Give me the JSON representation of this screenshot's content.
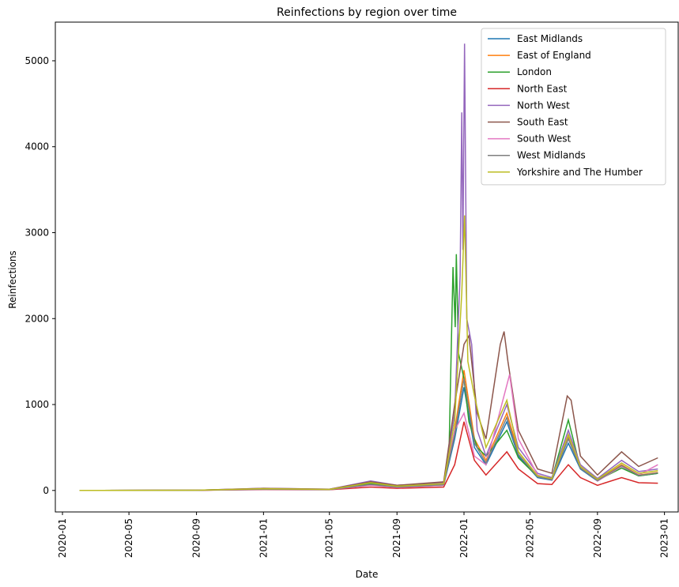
{
  "chart_data": {
    "type": "line",
    "title": "Reinfections by region over time",
    "xlabel": "Date",
    "ylabel": "Reinfections",
    "xlim": [
      "2019-12-19",
      "2023-01-26"
    ],
    "ylim": [
      -250,
      5450
    ],
    "x_ticks": [
      "2020-01",
      "2020-05",
      "2020-09",
      "2021-01",
      "2021-05",
      "2021-09",
      "2022-01",
      "2022-05",
      "2022-09",
      "2023-01"
    ],
    "y_ticks": [
      0,
      1000,
      2000,
      3000,
      4000,
      5000
    ],
    "grid": false,
    "legend_position": "top-right",
    "series": [
      {
        "name": "East Midlands",
        "color": "#1f77b4",
        "points": [
          [
            "2020-02-01",
            0
          ],
          [
            "2020-09-01",
            2
          ],
          [
            "2021-01-01",
            15
          ],
          [
            "2021-05-01",
            10
          ],
          [
            "2021-07-15",
            70
          ],
          [
            "2021-09-01",
            40
          ],
          [
            "2021-11-25",
            60
          ],
          [
            "2021-12-15",
            600
          ],
          [
            "2022-01-01",
            1200
          ],
          [
            "2022-01-20",
            500
          ],
          [
            "2022-02-10",
            300
          ],
          [
            "2022-03-20",
            800
          ],
          [
            "2022-04-10",
            400
          ],
          [
            "2022-05-15",
            150
          ],
          [
            "2022-06-10",
            120
          ],
          [
            "2022-07-10",
            550
          ],
          [
            "2022-08-01",
            250
          ],
          [
            "2022-09-01",
            110
          ],
          [
            "2022-10-15",
            280
          ],
          [
            "2022-11-15",
            170
          ],
          [
            "2022-12-20",
            200
          ]
        ]
      },
      {
        "name": "East of England",
        "color": "#ff7f0e",
        "points": [
          [
            "2020-02-01",
            0
          ],
          [
            "2020-09-01",
            2
          ],
          [
            "2021-01-01",
            15
          ],
          [
            "2021-05-01",
            10
          ],
          [
            "2021-07-15",
            75
          ],
          [
            "2021-09-01",
            45
          ],
          [
            "2021-11-25",
            65
          ],
          [
            "2021-12-15",
            700
          ],
          [
            "2022-01-01",
            1400
          ],
          [
            "2022-01-20",
            600
          ],
          [
            "2022-02-10",
            350
          ],
          [
            "2022-03-20",
            900
          ],
          [
            "2022-04-10",
            450
          ],
          [
            "2022-05-15",
            170
          ],
          [
            "2022-06-10",
            130
          ],
          [
            "2022-07-10",
            620
          ],
          [
            "2022-08-01",
            280
          ],
          [
            "2022-09-01",
            120
          ],
          [
            "2022-10-15",
            300
          ],
          [
            "2022-11-15",
            180
          ],
          [
            "2022-12-20",
            210
          ]
        ]
      },
      {
        "name": "London",
        "color": "#2ca02c",
        "points": [
          [
            "2020-02-01",
            0
          ],
          [
            "2020-09-01",
            3
          ],
          [
            "2021-01-01",
            20
          ],
          [
            "2021-05-01",
            12
          ],
          [
            "2021-07-15",
            80
          ],
          [
            "2021-09-01",
            50
          ],
          [
            "2021-11-25",
            80
          ],
          [
            "2021-12-05",
            500
          ],
          [
            "2021-12-12",
            2600
          ],
          [
            "2021-12-16",
            1900
          ],
          [
            "2021-12-18",
            2750
          ],
          [
            "2021-12-22",
            1600
          ],
          [
            "2022-01-01",
            1300
          ],
          [
            "2022-01-10",
            800
          ],
          [
            "2022-01-25",
            500
          ],
          [
            "2022-02-10",
            400
          ],
          [
            "2022-03-20",
            700
          ],
          [
            "2022-04-10",
            380
          ],
          [
            "2022-05-15",
            160
          ],
          [
            "2022-06-10",
            140
          ],
          [
            "2022-07-10",
            820
          ],
          [
            "2022-08-01",
            260
          ],
          [
            "2022-09-01",
            120
          ],
          [
            "2022-10-15",
            260
          ],
          [
            "2022-11-15",
            170
          ],
          [
            "2022-12-20",
            200
          ]
        ]
      },
      {
        "name": "North East",
        "color": "#d62728",
        "points": [
          [
            "2020-02-01",
            0
          ],
          [
            "2020-09-01",
            2
          ],
          [
            "2021-01-01",
            10
          ],
          [
            "2021-05-01",
            8
          ],
          [
            "2021-07-15",
            40
          ],
          [
            "2021-09-01",
            25
          ],
          [
            "2021-11-25",
            40
          ],
          [
            "2021-12-15",
            300
          ],
          [
            "2022-01-01",
            800
          ],
          [
            "2022-01-20",
            350
          ],
          [
            "2022-02-10",
            180
          ],
          [
            "2022-03-20",
            450
          ],
          [
            "2022-04-10",
            250
          ],
          [
            "2022-05-15",
            80
          ],
          [
            "2022-06-10",
            70
          ],
          [
            "2022-07-10",
            300
          ],
          [
            "2022-08-01",
            150
          ],
          [
            "2022-09-01",
            60
          ],
          [
            "2022-10-15",
            150
          ],
          [
            "2022-11-15",
            90
          ],
          [
            "2022-12-20",
            85
          ]
        ]
      },
      {
        "name": "North West",
        "color": "#9467bd",
        "points": [
          [
            "2020-02-01",
            0
          ],
          [
            "2020-09-01",
            3
          ],
          [
            "2021-01-01",
            25
          ],
          [
            "2021-05-01",
            15
          ],
          [
            "2021-07-15",
            110
          ],
          [
            "2021-09-01",
            60
          ],
          [
            "2021-11-25",
            90
          ],
          [
            "2021-12-15",
            900
          ],
          [
            "2021-12-25",
            2500
          ],
          [
            "2021-12-28",
            4400
          ],
          [
            "2021-12-30",
            2800
          ],
          [
            "2022-01-02",
            5200
          ],
          [
            "2022-01-06",
            2000
          ],
          [
            "2022-01-15",
            1700
          ],
          [
            "2022-01-25",
            700
          ],
          [
            "2022-02-10",
            400
          ],
          [
            "2022-03-20",
            1000
          ],
          [
            "2022-04-10",
            500
          ],
          [
            "2022-05-15",
            200
          ],
          [
            "2022-06-10",
            150
          ],
          [
            "2022-07-10",
            700
          ],
          [
            "2022-08-01",
            300
          ],
          [
            "2022-09-01",
            140
          ],
          [
            "2022-10-15",
            350
          ],
          [
            "2022-11-15",
            220
          ],
          [
            "2022-12-20",
            250
          ]
        ]
      },
      {
        "name": "South East",
        "color": "#8c564b",
        "points": [
          [
            "2020-02-01",
            0
          ],
          [
            "2020-09-01",
            3
          ],
          [
            "2021-01-01",
            25
          ],
          [
            "2021-05-01",
            15
          ],
          [
            "2021-07-15",
            100
          ],
          [
            "2021-09-01",
            60
          ],
          [
            "2021-11-25",
            100
          ],
          [
            "2021-12-15",
            1000
          ],
          [
            "2021-12-25",
            1400
          ],
          [
            "2022-01-01",
            1700
          ],
          [
            "2022-01-10",
            1800
          ],
          [
            "2022-01-25",
            900
          ],
          [
            "2022-02-10",
            600
          ],
          [
            "2022-03-08",
            1700
          ],
          [
            "2022-03-15",
            1850
          ],
          [
            "2022-03-22",
            1500
          ],
          [
            "2022-04-10",
            700
          ],
          [
            "2022-05-15",
            250
          ],
          [
            "2022-06-10",
            200
          ],
          [
            "2022-07-08",
            1100
          ],
          [
            "2022-07-15",
            1050
          ],
          [
            "2022-08-01",
            400
          ],
          [
            "2022-09-01",
            180
          ],
          [
            "2022-10-15",
            450
          ],
          [
            "2022-11-15",
            280
          ],
          [
            "2022-12-20",
            380
          ]
        ]
      },
      {
        "name": "South West",
        "color": "#e377c2",
        "points": [
          [
            "2020-02-01",
            0
          ],
          [
            "2020-09-01",
            2
          ],
          [
            "2021-01-01",
            12
          ],
          [
            "2021-05-01",
            10
          ],
          [
            "2021-07-15",
            60
          ],
          [
            "2021-09-01",
            35
          ],
          [
            "2021-11-25",
            60
          ],
          [
            "2021-12-15",
            700
          ],
          [
            "2022-01-01",
            900
          ],
          [
            "2022-01-20",
            400
          ],
          [
            "2022-02-10",
            300
          ],
          [
            "2022-03-25",
            1350
          ],
          [
            "2022-04-10",
            600
          ],
          [
            "2022-05-15",
            180
          ],
          [
            "2022-06-10",
            130
          ],
          [
            "2022-07-10",
            650
          ],
          [
            "2022-08-01",
            280
          ],
          [
            "2022-09-01",
            110
          ],
          [
            "2022-10-15",
            280
          ],
          [
            "2022-11-15",
            180
          ],
          [
            "2022-12-20",
            300
          ]
        ]
      },
      {
        "name": "West Midlands",
        "color": "#7f7f7f",
        "points": [
          [
            "2020-02-01",
            0
          ],
          [
            "2020-09-01",
            2
          ],
          [
            "2021-01-01",
            15
          ],
          [
            "2021-05-01",
            10
          ],
          [
            "2021-07-15",
            70
          ],
          [
            "2021-09-01",
            40
          ],
          [
            "2021-11-25",
            65
          ],
          [
            "2021-12-15",
            650
          ],
          [
            "2022-01-01",
            1300
          ],
          [
            "2022-01-20",
            550
          ],
          [
            "2022-02-10",
            320
          ],
          [
            "2022-03-20",
            850
          ],
          [
            "2022-04-10",
            420
          ],
          [
            "2022-05-15",
            160
          ],
          [
            "2022-06-10",
            125
          ],
          [
            "2022-07-10",
            600
          ],
          [
            "2022-08-01",
            260
          ],
          [
            "2022-09-01",
            115
          ],
          [
            "2022-10-15",
            290
          ],
          [
            "2022-11-15",
            175
          ],
          [
            "2022-12-20",
            205
          ]
        ]
      },
      {
        "name": "Yorkshire and The Humber",
        "color": "#bcbd22",
        "points": [
          [
            "2020-02-01",
            0
          ],
          [
            "2020-09-01",
            3
          ],
          [
            "2021-01-01",
            20
          ],
          [
            "2021-05-01",
            12
          ],
          [
            "2021-07-15",
            90
          ],
          [
            "2021-09-01",
            50
          ],
          [
            "2021-11-25",
            80
          ],
          [
            "2021-12-15",
            800
          ],
          [
            "2021-12-28",
            2300
          ],
          [
            "2022-01-02",
            3200
          ],
          [
            "2022-01-08",
            1500
          ],
          [
            "2022-01-20",
            1100
          ],
          [
            "2022-02-10",
            500
          ],
          [
            "2022-03-20",
            1050
          ],
          [
            "2022-04-10",
            450
          ],
          [
            "2022-05-15",
            170
          ],
          [
            "2022-06-10",
            140
          ],
          [
            "2022-07-10",
            650
          ],
          [
            "2022-08-01",
            280
          ],
          [
            "2022-09-01",
            130
          ],
          [
            "2022-10-15",
            320
          ],
          [
            "2022-11-15",
            200
          ],
          [
            "2022-12-20",
            230
          ]
        ]
      }
    ]
  }
}
